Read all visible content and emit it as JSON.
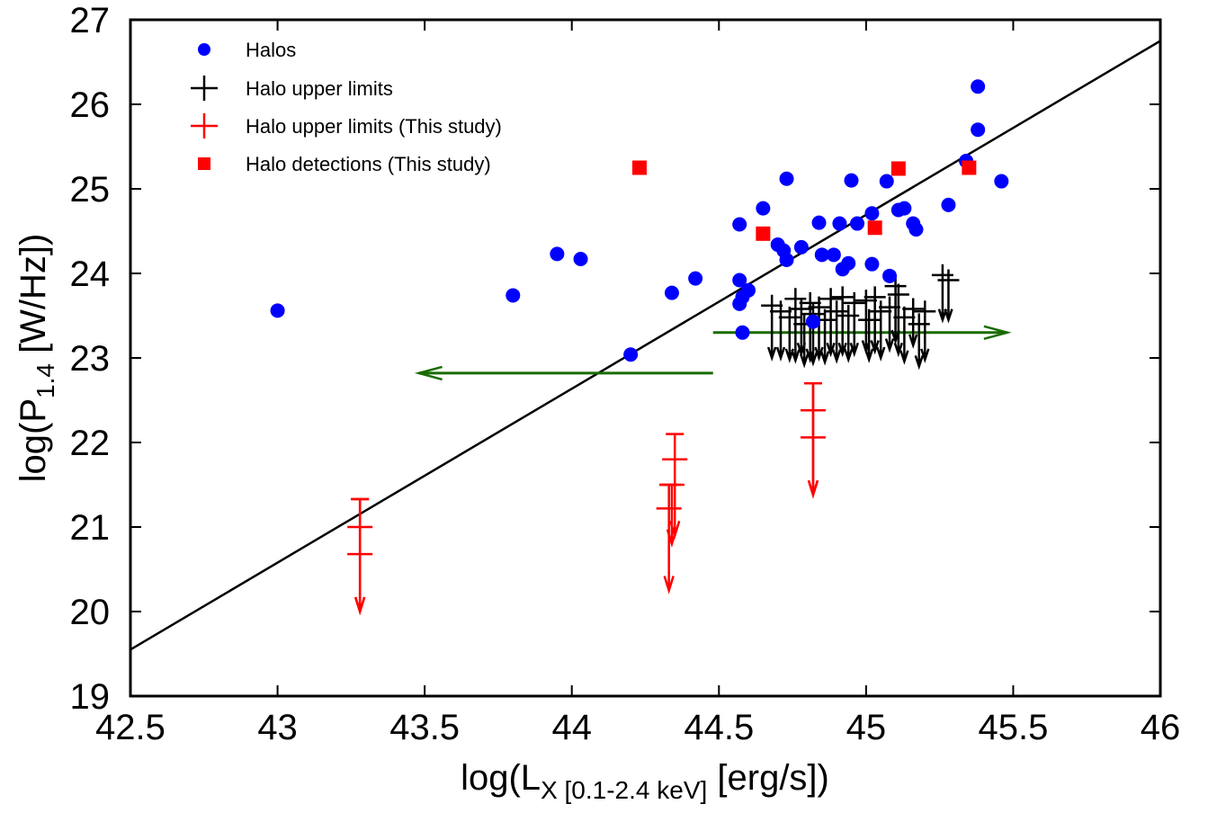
{
  "chart_data": {
    "type": "scatter",
    "xlabel": {
      "pre": "log(L",
      "sub": "X [0.1-2.4 keV]",
      "post": " [erg/s])"
    },
    "ylabel": {
      "pre": "log(P",
      "sub": "1.4",
      "post": " [W/Hz])"
    },
    "xlim": [
      42.5,
      46
    ],
    "ylim": [
      19,
      27
    ],
    "x_ticks": [
      "42.5",
      "43",
      "43.5",
      "44",
      "44.5",
      "45",
      "45.5",
      "46"
    ],
    "y_ticks": [
      "19",
      "20",
      "21",
      "22",
      "23",
      "24",
      "25",
      "26",
      "27"
    ],
    "legend_position": "top-left",
    "legend": [
      {
        "label": "Halos",
        "marker": "circle",
        "color": "#0000ff"
      },
      {
        "label": "Halo upper limits",
        "marker": "plus",
        "color": "#000000"
      },
      {
        "label": "Halo upper limits (This study)",
        "marker": "plus",
        "color": "#ff0000"
      },
      {
        "label": "Halo detections (This study)",
        "marker": "square",
        "color": "#ff0000"
      }
    ],
    "fit_line": {
      "x": [
        42.5,
        46.0
      ],
      "y": [
        19.55,
        26.75
      ],
      "color": "#000000"
    },
    "series": [
      {
        "name": "Halos",
        "color": "#0000ff",
        "marker": "circle",
        "x": [
          43.0,
          43.8,
          43.95,
          44.03,
          44.2,
          44.34,
          44.42,
          44.57,
          44.57,
          44.57,
          44.58,
          44.58,
          44.6,
          44.65,
          44.7,
          44.72,
          44.73,
          44.73,
          44.78,
          44.82,
          44.84,
          44.85,
          44.89,
          44.91,
          44.92,
          44.94,
          44.95,
          44.97,
          45.02,
          45.02,
          45.07,
          45.08,
          45.11,
          45.13,
          45.16,
          45.17,
          45.28,
          45.34,
          45.38,
          45.38,
          45.46
        ],
        "y": [
          23.56,
          23.74,
          24.23,
          24.17,
          23.04,
          23.77,
          23.94,
          24.58,
          23.92,
          23.64,
          23.72,
          23.3,
          23.8,
          24.77,
          24.34,
          24.27,
          24.16,
          25.12,
          24.31,
          23.43,
          24.6,
          24.22,
          24.22,
          24.59,
          24.05,
          24.12,
          25.1,
          24.59,
          24.71,
          24.11,
          25.09,
          23.97,
          24.75,
          24.77,
          24.59,
          24.52,
          24.81,
          25.33,
          25.7,
          26.21,
          25.09
        ]
      },
      {
        "name": "Halo detections (This study)",
        "color": "#ff0000",
        "marker": "square",
        "x": [
          44.23,
          44.65,
          45.03,
          45.11,
          45.35
        ],
        "y": [
          25.25,
          24.47,
          24.54,
          25.24,
          25.25
        ]
      },
      {
        "name": "Halo upper limits",
        "color": "#000000",
        "marker": "plus",
        "x": [
          44.68,
          44.71,
          44.74,
          44.76,
          44.78,
          44.79,
          44.81,
          44.82,
          44.84,
          44.86,
          44.88,
          44.9,
          44.92,
          44.94,
          44.96,
          45.0,
          45.01,
          45.03,
          45.05,
          45.08,
          45.1,
          45.11,
          45.13,
          45.16,
          45.18,
          45.2,
          45.26,
          45.28
        ],
        "y": [
          23.62,
          23.55,
          23.48,
          23.7,
          23.58,
          23.4,
          23.65,
          23.52,
          23.6,
          23.45,
          23.7,
          23.55,
          23.72,
          23.5,
          23.65,
          23.68,
          23.45,
          23.72,
          23.55,
          23.6,
          23.85,
          23.75,
          23.48,
          23.58,
          23.4,
          23.55,
          23.98,
          23.92
        ],
        "arrow_to_y": [
          23.0,
          23.0,
          22.98,
          22.97,
          23.05,
          22.92,
          22.98,
          22.94,
          23.0,
          22.95,
          23.05,
          22.97,
          23.05,
          22.98,
          23.05,
          23.08,
          22.98,
          23.08,
          23.0,
          23.1,
          23.2,
          23.05,
          22.96,
          23.15,
          22.9,
          22.98,
          23.45,
          23.45
        ]
      },
      {
        "name": "Halo upper limits (This study)",
        "color": "#ff0000",
        "marker": "plus",
        "x": [
          43.28,
          43.28,
          44.33,
          44.34,
          44.35,
          44.82,
          44.82
        ],
        "y": [
          21.0,
          20.68,
          21.22,
          21.5,
          21.8,
          22.38,
          22.06
        ],
        "arrow_to_y": [
          20.0,
          20.0,
          20.25,
          20.8,
          20.9,
          21.38,
          21.38
        ],
        "error_high": [
          21.33,
          21.33,
          21.5,
          21.5,
          22.1,
          22.7,
          22.7
        ]
      }
    ],
    "arrows": [
      {
        "x0": 44.48,
        "y0": 23.3,
        "x1": 45.48,
        "y1": 23.3,
        "color": "#1a6b00"
      },
      {
        "x0": 44.48,
        "y0": 22.82,
        "x1": 43.48,
        "y1": 22.82,
        "color": "#1a6b00"
      }
    ]
  }
}
